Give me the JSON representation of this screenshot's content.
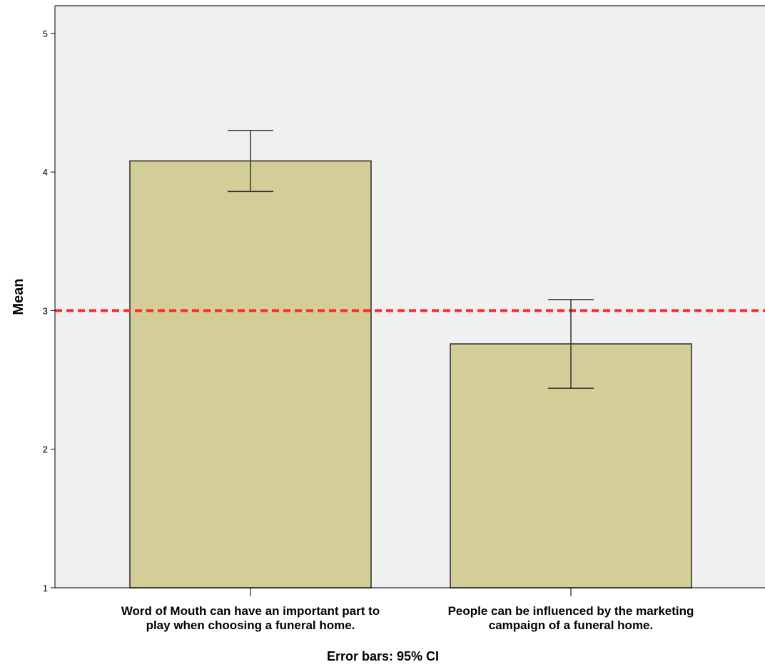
{
  "chart_data": {
    "type": "bar",
    "categories": [
      [
        "Word of Mouth can have an important part to",
        "play when choosing a funeral home."
      ],
      [
        "People can be influenced by the marketing",
        "campaign of a funeral home."
      ]
    ],
    "values": [
      4.08,
      2.76
    ],
    "error_bars": [
      {
        "low": 3.86,
        "high": 4.3
      },
      {
        "low": 2.44,
        "high": 3.08
      }
    ],
    "reference_line": {
      "y": 3,
      "style": "dashed",
      "color": "#ff2a2a"
    },
    "ylabel": "Mean",
    "xlabel": "",
    "ylim": [
      1,
      5.2
    ],
    "yticks": [
      1,
      2,
      3,
      4,
      5
    ],
    "footnote": "Error bars: 95% CI",
    "grid": false,
    "colors": {
      "bar_fill": "#d3cd97",
      "bar_stroke": "#2a2a2a",
      "plot_background": "#f0f0f0",
      "error_bar": "#333333"
    }
  }
}
